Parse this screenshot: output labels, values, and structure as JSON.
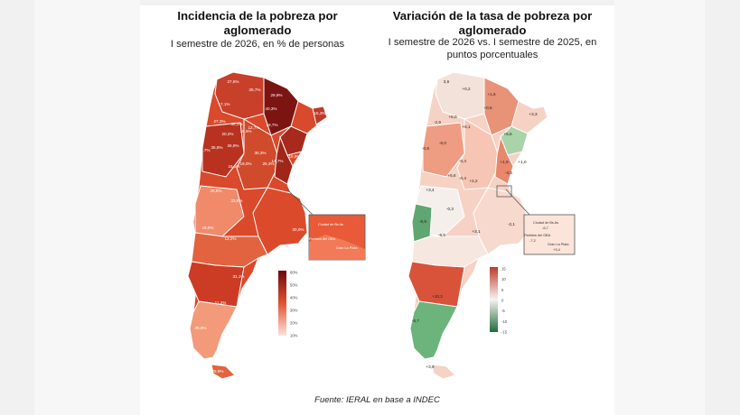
{
  "left_panel": {
    "title": "Incidencia de la pobreza por aglomerado",
    "subtitle": "I semestre de 2026, en % de personas",
    "value_labels": [
      "27,6%",
      "25,7%",
      "29,9%",
      "40,3%",
      "15,3%",
      "17,1%",
      "27,3%",
      "38,2%",
      "12,7%",
      "19,7%",
      "16,6%",
      "20,2%",
      "35,8%",
      "26,9%",
      "19,0%",
      "30,3%",
      "35,7%",
      "25,3%",
      "14,7%",
      "28,6%",
      "16,6%",
      "19,9%",
      "33,8%",
      "19,6%",
      "13,2%",
      "20,0%",
      "31,1%",
      "11,2%",
      "25,9%",
      "25,9%"
    ],
    "inset_labels": [
      "Ciudad de Bs As",
      "Partidos del GBA",
      "Gran La Plata"
    ],
    "legend_ticks": [
      "60%",
      "50%",
      "40%",
      "30%",
      "20%",
      "10%"
    ],
    "colors": {
      "low": "#fde3d9",
      "mid": "#e0532f",
      "high": "#6b0a0e"
    }
  },
  "right_panel": {
    "title": "Variación de la tasa de pobreza por aglomerado",
    "subtitle": "I semestre de 2026 vs. I semestre de 2025, en puntos porcentuales",
    "value_labels": [
      "3,6",
      "+0,2",
      "+1,6",
      "+0,5",
      "+3,3",
      "-2,9",
      "+6,0",
      "+6,1",
      "+5,6",
      "-0,8",
      "-6,0",
      "-0,4",
      "+1,9",
      "+1,0",
      "+3,4",
      "-0,4",
      "+5,6",
      "+2,2",
      "-3,5",
      "-0,3",
      "-6,9",
      "-6,5",
      "-2,1",
      "+3,1",
      "+10,3",
      "-6,7",
      "+3,6"
    ],
    "inset_labels": [
      "Ciudad de Bs As",
      "Partidos del GBA",
      "Gran La Plata"
    ],
    "inset_values": [
      "-6,7",
      "-7,2",
      "+3,4"
    ],
    "legend_ticks": [
      "15",
      "10",
      "5",
      "0",
      "-5",
      "-10",
      "-15"
    ],
    "colors": {
      "positive": "#e0532f",
      "zero": "#f7f3f0",
      "negative": "#2e8b4f"
    }
  },
  "source": "Fuente: IERAL en base a INDEC"
}
